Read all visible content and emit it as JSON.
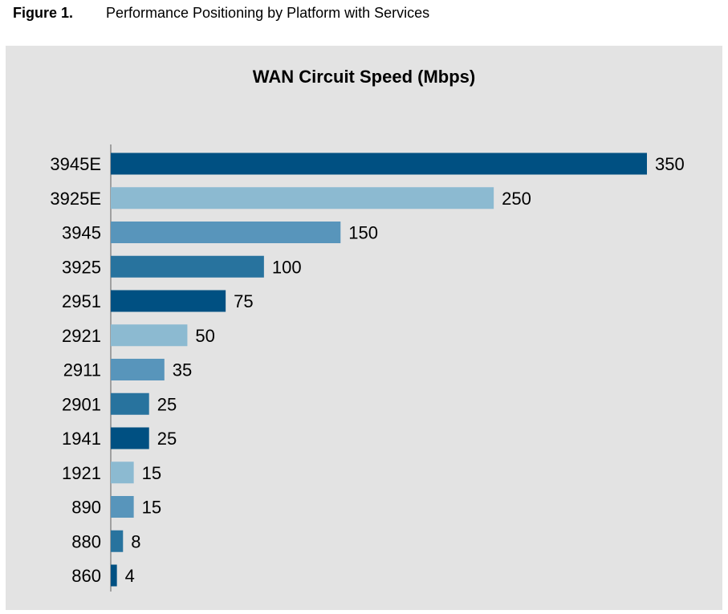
{
  "figure": {
    "label": "Figure 1.",
    "title": "Performance Positioning by Platform with Services"
  },
  "chart_data": {
    "type": "bar",
    "orientation": "horizontal",
    "title": "WAN Circuit Speed (Mbps)",
    "xlabel": "",
    "ylabel": "",
    "xlim": [
      0,
      350
    ],
    "grid": false,
    "legend": "none",
    "categories": [
      "3945E",
      "3925E",
      "3945",
      "3925",
      "2951",
      "2921",
      "2911",
      "2901",
      "1941",
      "1921",
      "890",
      "880",
      "860"
    ],
    "values": [
      350,
      250,
      150,
      100,
      75,
      50,
      35,
      25,
      25,
      15,
      15,
      8,
      4
    ],
    "value_labels": [
      "350",
      "250",
      "150",
      "100",
      "75",
      "50",
      "35",
      "25",
      "25",
      "15",
      "15",
      "8",
      "4"
    ],
    "colors": [
      "#005082",
      "#8cbad1",
      "#5895bb",
      "#28739e",
      "#005082",
      "#8cbad1",
      "#5895bb",
      "#28739e",
      "#005082",
      "#8cbad1",
      "#5895bb",
      "#28739e",
      "#005082"
    ]
  }
}
